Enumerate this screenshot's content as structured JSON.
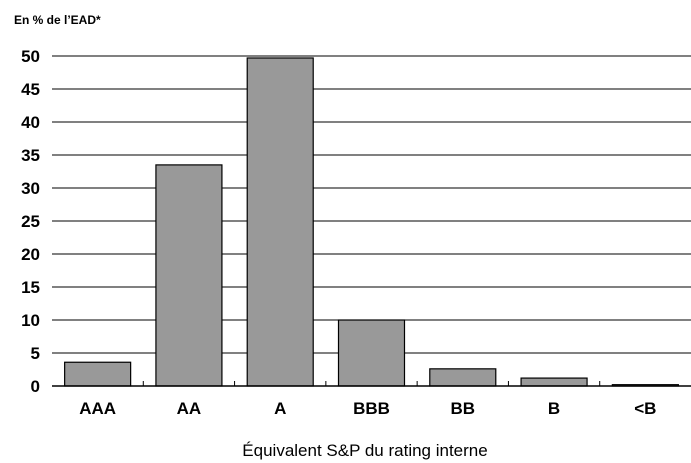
{
  "chart_data": {
    "type": "bar",
    "unit_label": "En % de l’EAD*",
    "xlabel": "Équivalent S&P du rating interne",
    "ylabel": "",
    "categories": [
      "AAA",
      "AA",
      "A",
      "BBB",
      "BB",
      "B",
      "<B"
    ],
    "values": [
      3.6,
      33.5,
      49.7,
      10.0,
      2.6,
      1.2,
      0.2
    ],
    "ylim": [
      0,
      50
    ],
    "yticks": [
      0,
      5,
      10,
      15,
      20,
      25,
      30,
      35,
      40,
      45,
      50
    ],
    "grid": true,
    "colors": {
      "bar": "#999999",
      "grid": "#000000"
    }
  }
}
